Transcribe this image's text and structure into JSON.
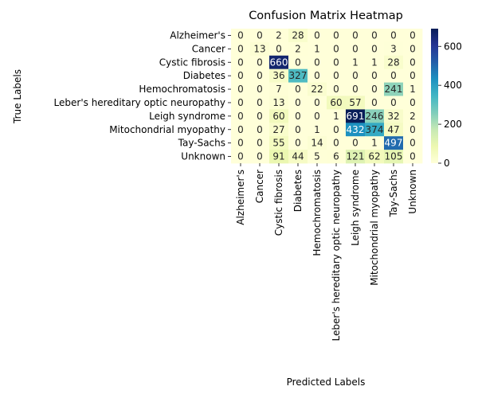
{
  "chart_data": {
    "type": "heatmap",
    "title": "Confusion Matrix Heatmap",
    "xlabel": "Predicted Labels",
    "ylabel": "True Labels",
    "x_categories": [
      "Alzheimer's",
      "Cancer",
      "Cystic fibrosis",
      "Diabetes",
      "Hemochromatosis",
      "Leber's hereditary optic neuropathy",
      "Leigh syndrome",
      "Mitochondrial myopathy",
      "Tay-Sachs",
      "Unknown"
    ],
    "y_categories": [
      "Alzheimer's",
      "Cancer",
      "Cystic fibrosis",
      "Diabetes",
      "Hemochromatosis",
      "Leber's hereditary optic neuropathy",
      "Leigh syndrome",
      "Mitochondrial myopathy",
      "Tay-Sachs",
      "Unknown"
    ],
    "values": [
      [
        0,
        0,
        2,
        28,
        0,
        0,
        0,
        0,
        0,
        0
      ],
      [
        0,
        13,
        0,
        2,
        1,
        0,
        0,
        0,
        3,
        0
      ],
      [
        0,
        0,
        660,
        0,
        0,
        0,
        1,
        1,
        28,
        0
      ],
      [
        0,
        0,
        36,
        327,
        0,
        0,
        0,
        0,
        0,
        0
      ],
      [
        0,
        0,
        7,
        0,
        22,
        0,
        0,
        0,
        241,
        1
      ],
      [
        0,
        0,
        13,
        0,
        0,
        60,
        57,
        0,
        0,
        0
      ],
      [
        0,
        0,
        60,
        0,
        0,
        1,
        691,
        246,
        32,
        2
      ],
      [
        0,
        0,
        27,
        0,
        1,
        0,
        432,
        374,
        47,
        0
      ],
      [
        0,
        0,
        55,
        0,
        14,
        0,
        0,
        1,
        497,
        0
      ],
      [
        0,
        0,
        91,
        44,
        5,
        6,
        121,
        62,
        105,
        0
      ]
    ],
    "colormap": "YlGnBu",
    "colorbar": {
      "range": [
        0,
        691
      ],
      "ticks": [
        0,
        200,
        400,
        600
      ]
    }
  }
}
